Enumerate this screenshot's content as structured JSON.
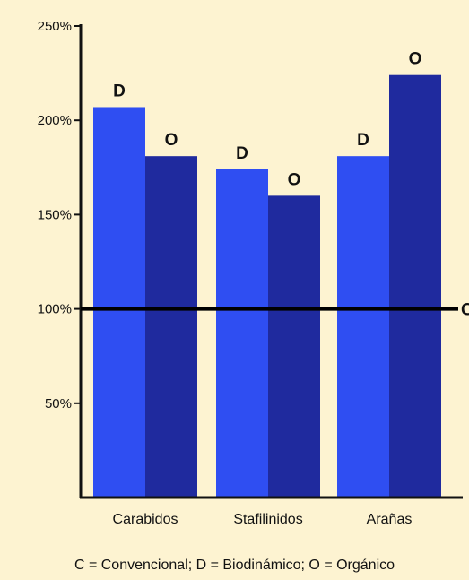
{
  "chart_data": {
    "type": "bar",
    "categories": [
      "Carabidos",
      "Stafilinidos",
      "Arañas"
    ],
    "series": [
      {
        "values": [
          207,
          174,
          181
        ],
        "bar_label": "D",
        "color": "#2f4ef2"
      },
      {
        "values": [
          181,
          160,
          224
        ],
        "bar_label": "O",
        "color": "#1f2a9e"
      }
    ],
    "y_ticks": [
      {
        "value": 50,
        "label": "50%"
      },
      {
        "value": 100,
        "label": "100%"
      },
      {
        "value": 150,
        "label": "150%"
      },
      {
        "value": 200,
        "label": "200%"
      },
      {
        "value": 250,
        "label": "250%"
      }
    ],
    "ylim": [
      0,
      250
    ],
    "reference_line": {
      "value": 100,
      "label": "C"
    },
    "legend_text": "C = Convencional; D = Biodinámico; O = Orgánico",
    "grid": false,
    "background_color": "#fdf3d1"
  }
}
